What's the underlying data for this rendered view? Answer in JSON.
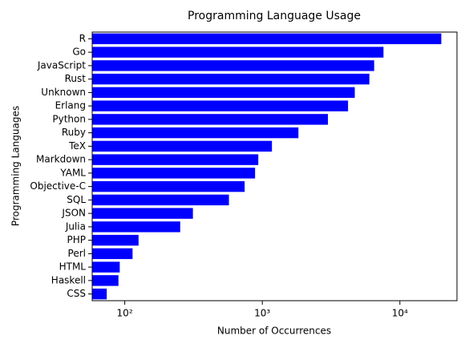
{
  "chart_data": {
    "type": "barh",
    "title": "Programming Language Usage",
    "xlabel": "Number of Occurrences",
    "ylabel": "Programming Languages",
    "categories": [
      "R",
      "Go",
      "JavaScript",
      "Rust",
      "Unknown",
      "Erlang",
      "Python",
      "Ruby",
      "TeX",
      "Markdown",
      "YAML",
      "Objective-C",
      "SQL",
      "JSON",
      "Julia",
      "PHP",
      "Perl",
      "HTML",
      "Haskell",
      "CSS"
    ],
    "values": [
      20000,
      7600,
      6500,
      6000,
      4700,
      4200,
      3000,
      1830,
      1175,
      935,
      886,
      744,
      572,
      313,
      253,
      126,
      114,
      92,
      90,
      74
    ],
    "color": "#0000ff",
    "xscale": "log",
    "xlim": [
      58,
      26000
    ],
    "xticks": [
      {
        "value": 100,
        "label": "10²"
      },
      {
        "value": 1000,
        "label": "10³"
      },
      {
        "value": 10000,
        "label": "10⁴"
      }
    ]
  }
}
